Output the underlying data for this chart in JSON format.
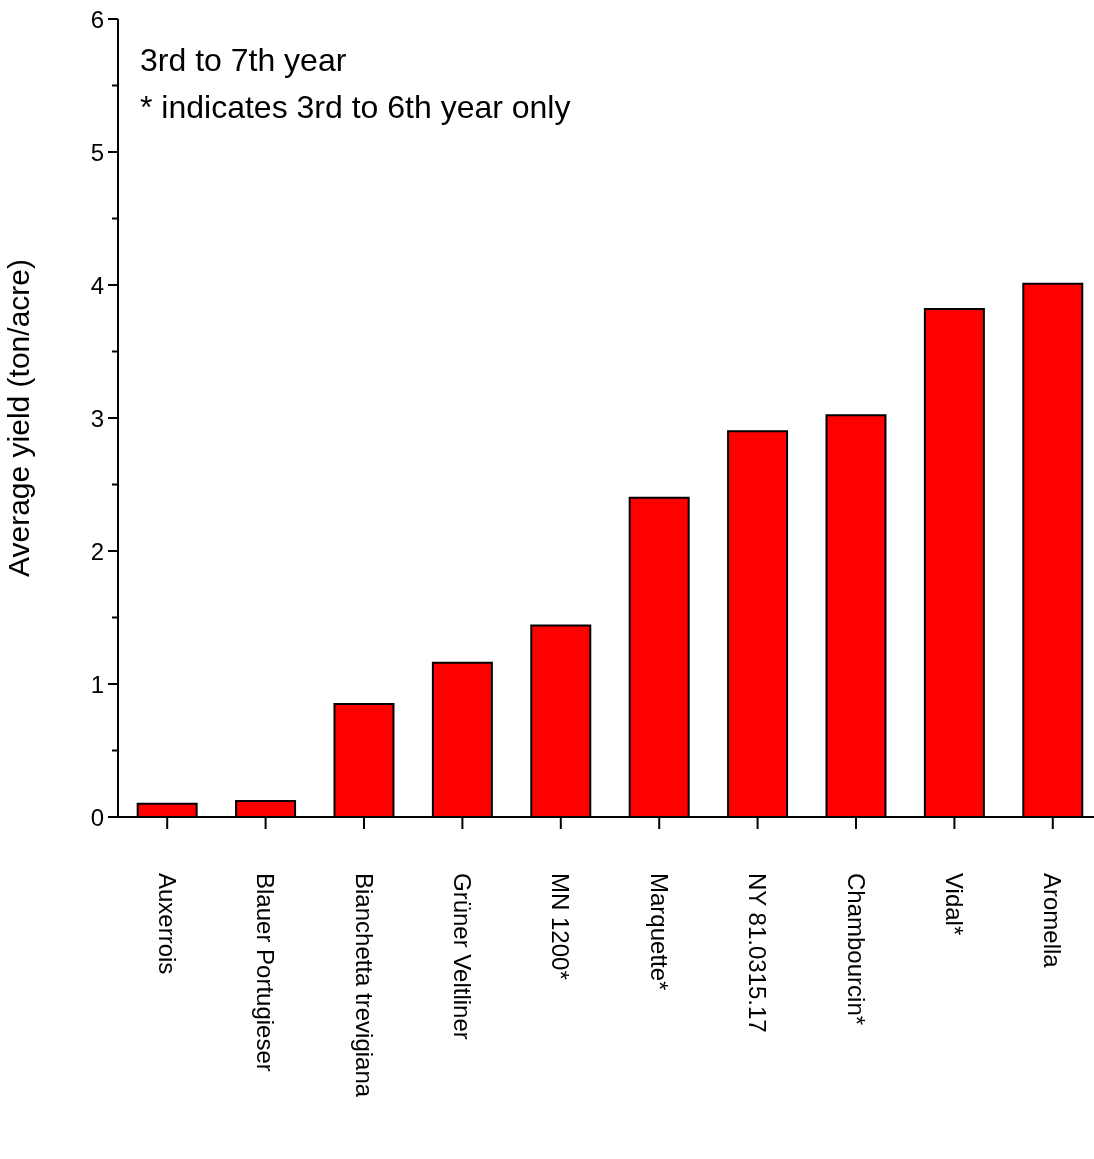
{
  "chart_data": {
    "type": "bar",
    "ylabel": "Average yield (ton/acre)",
    "annotations": [
      "3rd to 7th year",
      "* indicates 3rd to 6th year only"
    ],
    "categories": [
      "Auxerrois",
      "Blauer Portugieser",
      "Bianchetta trevigiana",
      "Grüner Veltliner",
      "MN 1200*",
      "Marquette*",
      "NY 81.0315.17",
      "Chambourcin*",
      "Vidal*",
      "Aromella"
    ],
    "values": [
      0.1,
      0.12,
      0.85,
      1.16,
      1.44,
      2.4,
      2.9,
      3.02,
      3.82,
      4.01
    ],
    "color": "#ff0000",
    "ylim": [
      0,
      6
    ],
    "yticks": [
      0,
      {
        "value": 0.5,
        "label": null
      },
      1,
      {
        "value": 1.5,
        "label": null
      },
      2,
      {
        "value": 2.5,
        "label": null
      },
      3,
      {
        "value": 3.5,
        "label": null
      },
      4,
      {
        "value": 4.5,
        "label": null
      },
      5,
      {
        "value": 5.5,
        "label": null
      },
      6
    ],
    "grid": false
  }
}
